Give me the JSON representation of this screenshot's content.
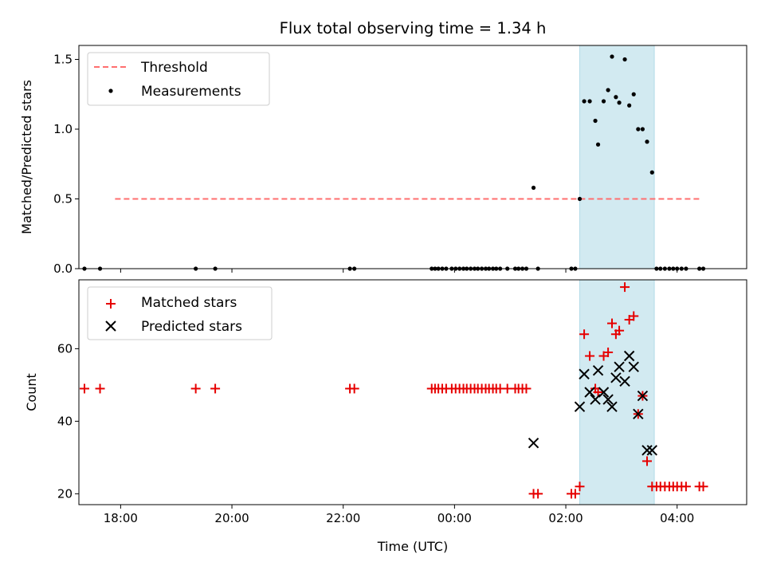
{
  "chart_data": [
    {
      "type": "scatter",
      "title": "Flux total observing time = 1.34 h",
      "xlabel": "",
      "ylabel": "Matched/Predicted stars",
      "xlim": [
        -6.75,
        5.25
      ],
      "ylim": [
        0,
        1.6
      ],
      "yticks": [
        0.0,
        0.5,
        1.0,
        1.5
      ],
      "ytick_labels": [
        "0.0",
        "0.5",
        "1.0",
        "1.5"
      ],
      "grid": false,
      "legend_position": "top-left",
      "shaded_region": {
        "x_start": 2.25,
        "x_end": 3.59,
        "color": "#add8e6"
      },
      "threshold": {
        "name": "Threshold",
        "y": 0.5,
        "x_start": -6.1,
        "x_end": 4.45,
        "color": "#ff6f6f"
      },
      "series": [
        {
          "name": "Measurements",
          "marker": "dot",
          "color": "#000000",
          "x": [
            -6.65,
            -6.37,
            -4.65,
            -4.3,
            -1.88,
            -1.8,
            -0.41,
            -0.35,
            -0.29,
            -0.22,
            -0.15,
            -0.05,
            0.02,
            0.09,
            0.16,
            0.22,
            0.29,
            0.36,
            0.42,
            0.49,
            0.56,
            0.62,
            0.69,
            0.75,
            0.82,
            0.95,
            1.09,
            1.15,
            1.22,
            1.29,
            1.42,
            1.5,
            2.1,
            2.17,
            2.25,
            2.33,
            2.43,
            2.53,
            2.58,
            2.68,
            2.76,
            2.83,
            2.9,
            2.96,
            3.06,
            3.14,
            3.22,
            3.3,
            3.38,
            3.46,
            3.55,
            3.63,
            3.7,
            3.78,
            3.86,
            3.93,
            4.0,
            4.08,
            4.16,
            4.4,
            4.47
          ],
          "y": [
            0,
            0,
            0,
            0,
            0,
            0,
            0,
            0,
            0,
            0,
            0,
            0,
            0,
            0,
            0,
            0,
            0,
            0,
            0,
            0,
            0,
            0,
            0,
            0,
            0,
            0,
            0,
            0,
            0,
            0,
            0.58,
            0,
            0,
            0,
            0.5,
            1.2,
            1.2,
            1.06,
            0.89,
            1.2,
            1.28,
            1.52,
            1.23,
            1.19,
            1.5,
            1.17,
            1.25,
            1.0,
            1.0,
            0.91,
            0.69,
            0,
            0,
            0,
            0,
            0,
            0,
            0,
            0,
            0,
            0
          ]
        }
      ]
    },
    {
      "type": "scatter",
      "title": "",
      "xlabel": "Time (UTC)",
      "ylabel": "Count",
      "xlim": [
        -6.75,
        5.25
      ],
      "ylim": [
        17,
        79
      ],
      "yticks": [
        20,
        40,
        60
      ],
      "ytick_labels": [
        "20",
        "40",
        "60"
      ],
      "xticks": [
        -6,
        -4,
        -2,
        0,
        2,
        4
      ],
      "xtick_labels": [
        "18:00",
        "20:00",
        "22:00",
        "00:00",
        "02:00",
        "04:00"
      ],
      "grid": false,
      "legend_position": "top-left",
      "shaded_region": {
        "x_start": 2.25,
        "x_end": 3.59,
        "color": "#add8e6"
      },
      "series": [
        {
          "name": "Matched stars",
          "marker": "plus",
          "color": "#e60000",
          "x": [
            -6.65,
            -6.37,
            -4.65,
            -4.3,
            -1.88,
            -1.8,
            -0.41,
            -0.35,
            -0.29,
            -0.22,
            -0.15,
            -0.05,
            0.02,
            0.09,
            0.16,
            0.22,
            0.29,
            0.36,
            0.42,
            0.49,
            0.56,
            0.62,
            0.69,
            0.75,
            0.82,
            0.95,
            1.09,
            1.15,
            1.22,
            1.29,
            1.42,
            1.5,
            2.1,
            2.17,
            2.25,
            2.33,
            2.43,
            2.53,
            2.58,
            2.68,
            2.76,
            2.83,
            2.9,
            2.96,
            3.06,
            3.14,
            3.22,
            3.3,
            3.38,
            3.46,
            3.55,
            3.63,
            3.7,
            3.78,
            3.86,
            3.93,
            4.0,
            4.08,
            4.16,
            4.4,
            4.47
          ],
          "y": [
            49,
            49,
            49,
            49,
            49,
            49,
            49,
            49,
            49,
            49,
            49,
            49,
            49,
            49,
            49,
            49,
            49,
            49,
            49,
            49,
            49,
            49,
            49,
            49,
            49,
            49,
            49,
            49,
            49,
            49,
            20,
            20,
            20,
            20,
            22,
            64,
            58,
            49,
            48,
            58,
            59,
            67,
            64,
            65,
            77,
            68,
            69,
            42,
            47,
            29,
            22,
            22,
            22,
            22,
            22,
            22,
            22,
            22,
            22,
            22,
            22
          ]
        },
        {
          "name": "Predicted stars",
          "marker": "x",
          "color": "#000000",
          "x": [
            1.42,
            2.25,
            2.33,
            2.43,
            2.53,
            2.58,
            2.68,
            2.76,
            2.83,
            2.9,
            2.96,
            3.06,
            3.14,
            3.22,
            3.3,
            3.38,
            3.46,
            3.55
          ],
          "y": [
            34,
            44,
            53,
            48,
            46,
            54,
            48,
            46,
            44,
            52,
            55,
            51,
            58,
            55,
            42,
            47,
            32,
            32
          ]
        }
      ]
    }
  ]
}
